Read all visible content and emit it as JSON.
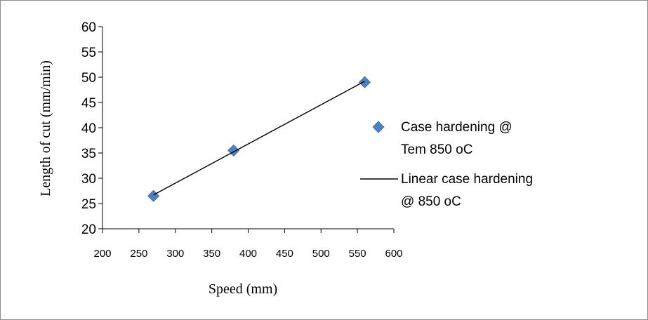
{
  "chart_data": {
    "type": "scatter",
    "xlabel": "Speed (mm)",
    "ylabel": "Length of cut  (mm/min)",
    "xlim": [
      200,
      600
    ],
    "ylim": [
      20,
      60
    ],
    "x_ticks": [
      200,
      250,
      300,
      350,
      400,
      450,
      500,
      550,
      600
    ],
    "y_ticks": [
      20,
      25,
      30,
      35,
      40,
      45,
      50,
      55,
      60
    ],
    "grid": false,
    "legend_position": "right",
    "series": [
      {
        "name": "Case hardening  @ Tem 850 oC",
        "legend_lines": [
          "Case hardening  @",
          "Tem 850 oC"
        ],
        "kind": "scatter",
        "marker": "diamond",
        "color": "#4f81bd",
        "x": [
          270,
          380,
          560
        ],
        "y": [
          26.5,
          35.5,
          49
        ]
      },
      {
        "name": "Linear case hardening @ 850 oC",
        "legend_lines": [
          "Linear case hardening",
          "@ 850 oC"
        ],
        "kind": "trendline",
        "color": "#000000",
        "x": [
          270,
          560
        ],
        "y": [
          26.7,
          49.2
        ]
      }
    ]
  }
}
